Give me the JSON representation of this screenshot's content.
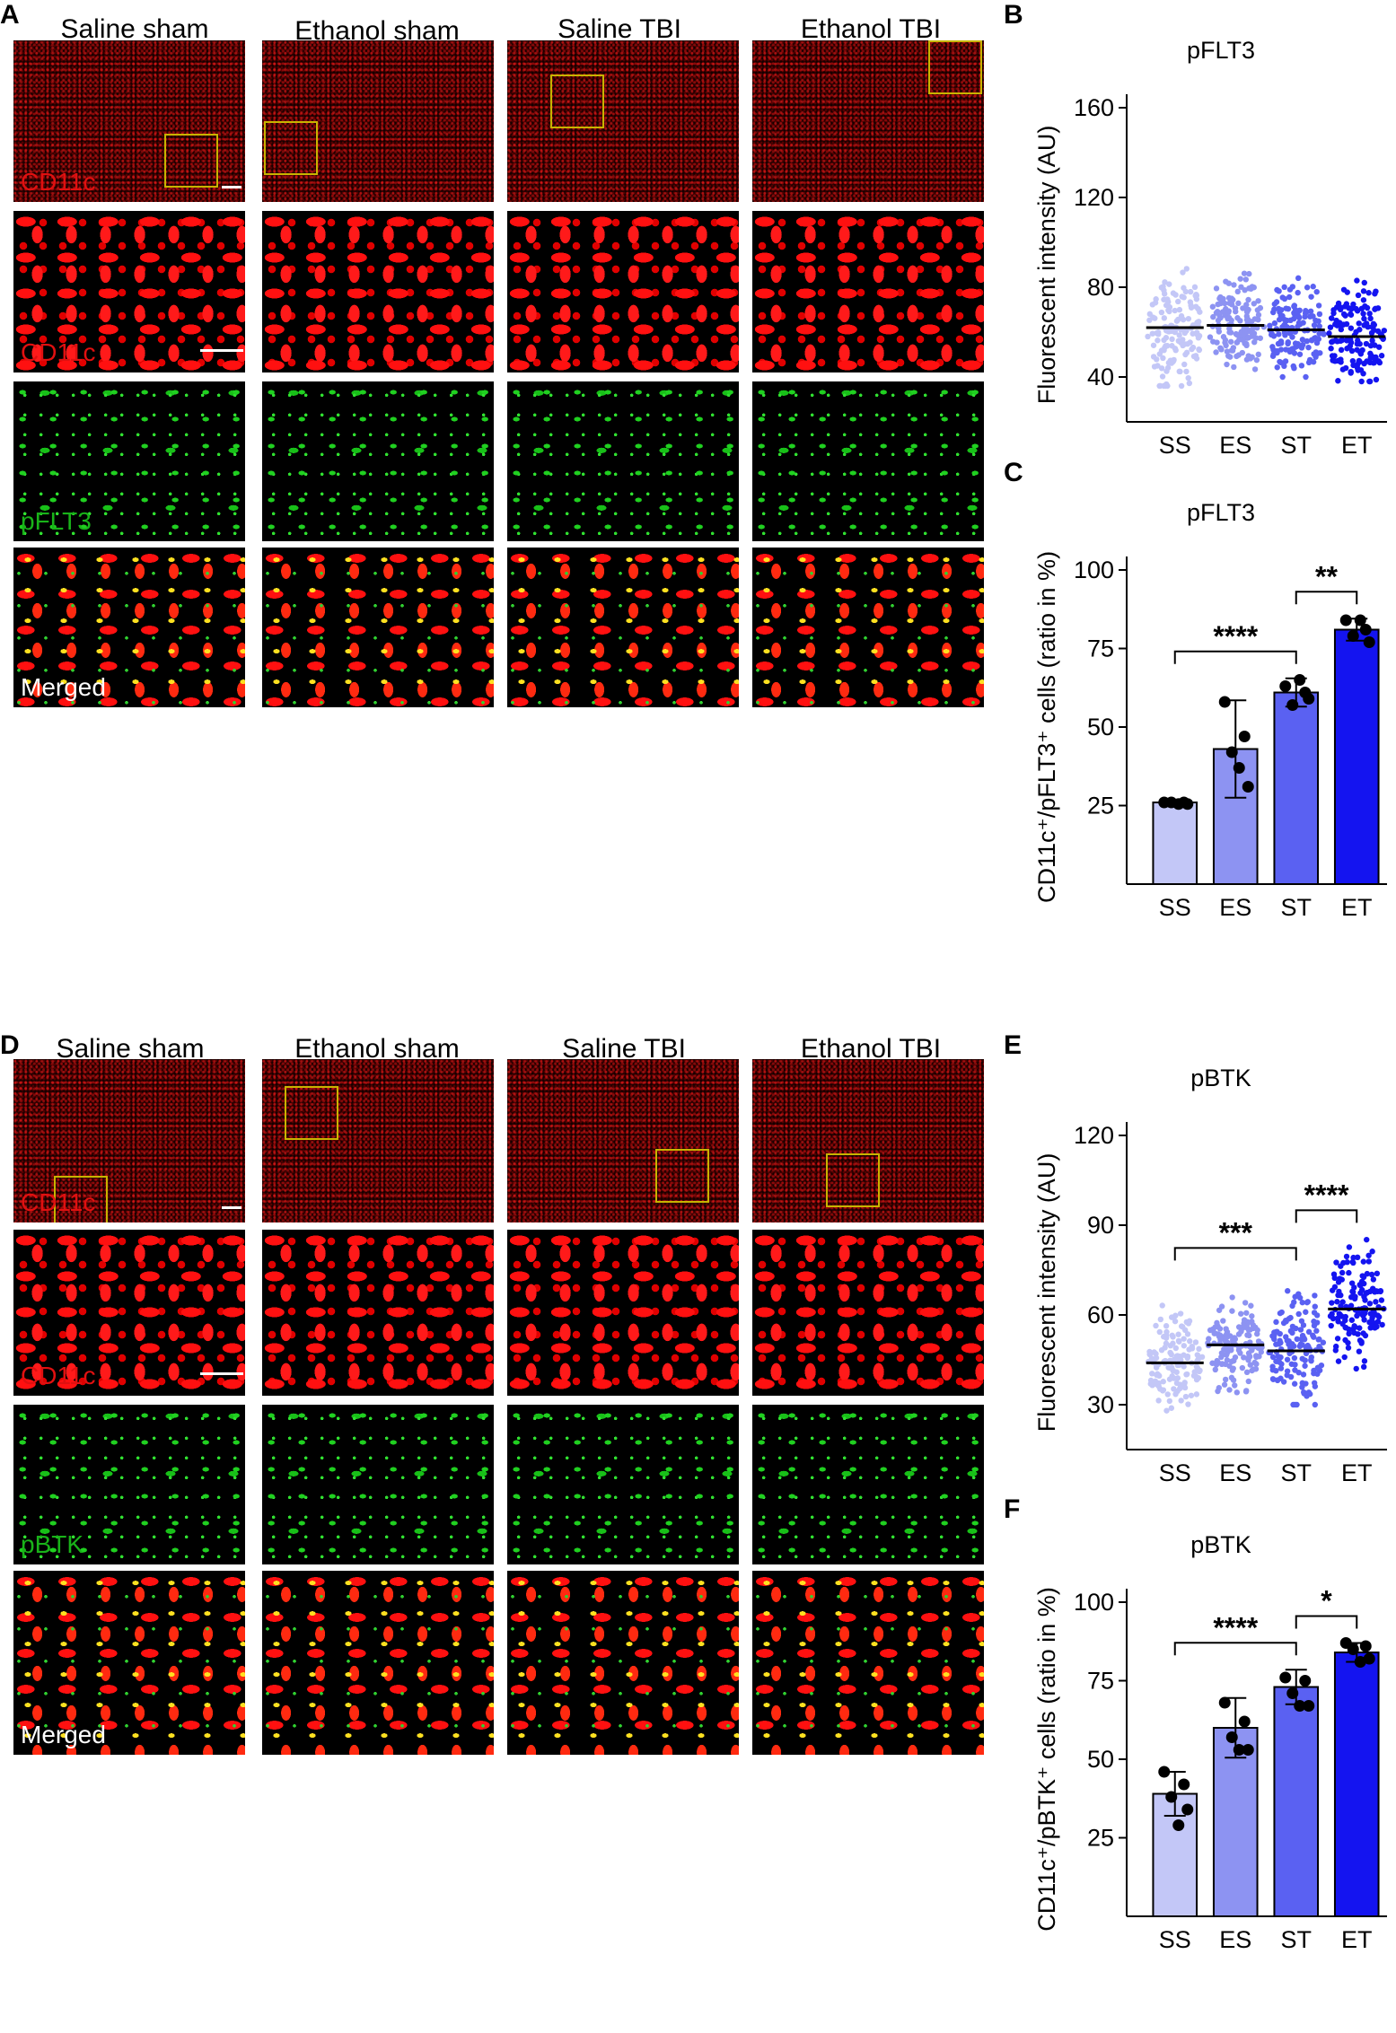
{
  "panel_letters": {
    "A": "A",
    "B": "B",
    "C": "C",
    "D": "D",
    "E": "E",
    "F": "F"
  },
  "column_titles": [
    "Saline sham",
    "Ethanol sham",
    "Saline TBI",
    "Ethanol TBI"
  ],
  "panel_A": {
    "row_labels": [
      "CD11c",
      "CD11c",
      "pFLT3",
      "Merged"
    ]
  },
  "panel_D": {
    "row_labels": [
      "CD11c",
      "CD11c",
      "pBTK",
      "Merged"
    ]
  },
  "colors": {
    "red": "#e01010",
    "green": "#19b319",
    "SS": "#c3c7f7",
    "ES": "#8d93f2",
    "ST": "#5a61f2",
    "ET": "#1414f0"
  },
  "chart_data": [
    {
      "id": "B",
      "type": "scatter",
      "title": "pFLT3",
      "ylabel": "Fluorescent intensity (AU)",
      "ylim": [
        20,
        160
      ],
      "yticks": [
        40,
        80,
        120,
        160
      ],
      "categories": [
        "SS",
        "ES",
        "ST",
        "ET"
      ],
      "means": [
        62,
        63,
        61,
        58
      ],
      "spread": [
        [
          36,
          98
        ],
        [
          42,
          96
        ],
        [
          40,
          93
        ],
        [
          38,
          94
        ]
      ],
      "significance": []
    },
    {
      "id": "C",
      "type": "bar",
      "title": "pFLT3",
      "ylabel": "CD11c⁺/pFLT3⁺ cells (ratio in %)",
      "ylim": [
        0,
        100
      ],
      "yticks": [
        25,
        50,
        75,
        100
      ],
      "categories": [
        "SS",
        "ES",
        "ST",
        "ET"
      ],
      "values": [
        26,
        43,
        61,
        81
      ],
      "sd": [
        0.7,
        15.5,
        4.5,
        3.5
      ],
      "points": [
        [
          26,
          26,
          26,
          25.5,
          25.5
        ],
        [
          58,
          47,
          42,
          31,
          37
        ],
        [
          63,
          61,
          57,
          59,
          65
        ],
        [
          84,
          81,
          79,
          77,
          84
        ]
      ],
      "significance": [
        {
          "from": 0,
          "to": 2,
          "label": "****"
        },
        {
          "from": 2,
          "to": 3,
          "label": "**"
        }
      ]
    },
    {
      "id": "E",
      "type": "scatter",
      "title": "pBTK",
      "ylabel": "Fluorescent intensity (AU)",
      "ylim": [
        15,
        120
      ],
      "yticks": [
        30,
        60,
        90,
        120
      ],
      "categories": [
        "SS",
        "ES",
        "ST",
        "ET"
      ],
      "means": [
        44,
        50,
        48,
        62
      ],
      "spread": [
        [
          28,
          68
        ],
        [
          33,
          71
        ],
        [
          30,
          74
        ],
        [
          40,
          86
        ]
      ],
      "significance": [
        {
          "from": 0,
          "to": 2,
          "label": "***"
        },
        {
          "from": 2,
          "to": 3,
          "label": "****"
        }
      ]
    },
    {
      "id": "F",
      "type": "bar",
      "title": "pBTK",
      "ylabel": "CD11c⁺/pBTK⁺ cells (ratio in %)",
      "ylim": [
        0,
        100
      ],
      "yticks": [
        25,
        50,
        75,
        100
      ],
      "categories": [
        "SS",
        "ES",
        "ST",
        "ET"
      ],
      "values": [
        39,
        60,
        73,
        84
      ],
      "sd": [
        7,
        9.5,
        5.5,
        3
      ],
      "points": [
        [
          46,
          42,
          38,
          34,
          29
        ],
        [
          68,
          62,
          57,
          53,
          53
        ],
        [
          76,
          75,
          71,
          67,
          67
        ],
        [
          87,
          86,
          85,
          82,
          81
        ]
      ],
      "significance": [
        {
          "from": 0,
          "to": 2,
          "label": "****"
        },
        {
          "from": 2,
          "to": 3,
          "label": "*"
        }
      ]
    }
  ]
}
